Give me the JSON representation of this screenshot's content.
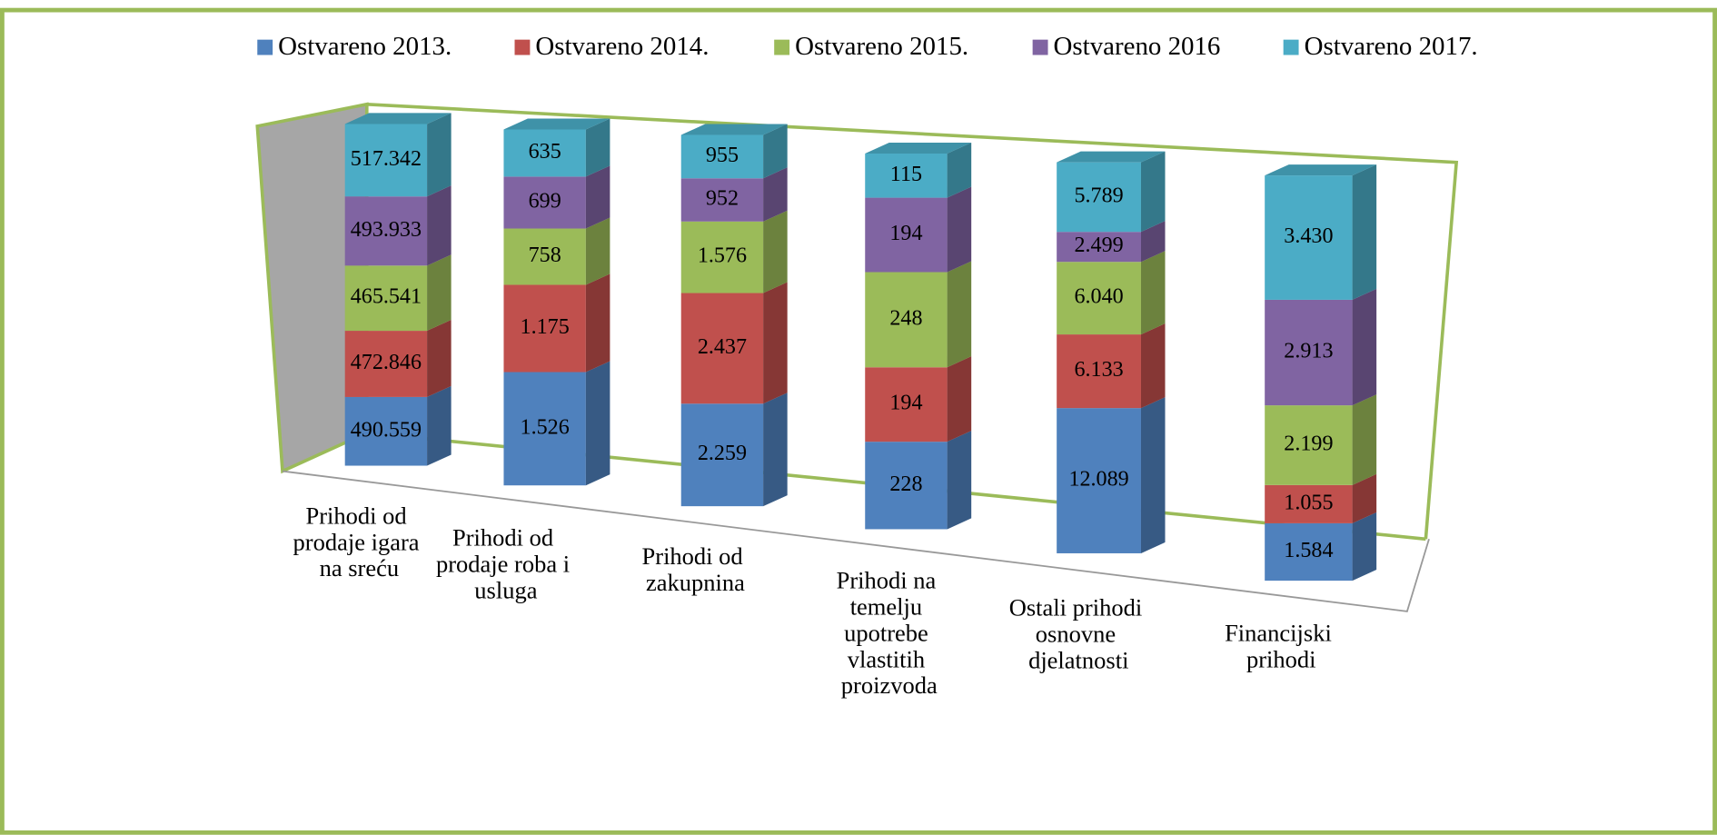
{
  "chart_data": {
    "type": "bar3d_percent",
    "categories": [
      "Prihodi od prodaje igara na sreću",
      "Prihodi od prodaje roba i usluga",
      "Prihodi od zakupnina",
      "Prihodi na temelju upotrebe vlastitih proizvoda",
      "Ostali prihodi osnovne djelatnosti",
      "Financijski prihodi"
    ],
    "series": [
      {
        "name": "Ostvareno 2013.",
        "color": "#4f81bd",
        "values": [
          490559,
          1526,
          2259,
          228,
          12089,
          1584
        ],
        "value_labels": [
          "490.559",
          "1.526",
          "2.259",
          "228",
          "12.089",
          "1.584"
        ]
      },
      {
        "name": "Ostvareno 2014.",
        "color": "#c0504d",
        "values": [
          472846,
          1175,
          2437,
          194,
          6133,
          1055
        ],
        "value_labels": [
          "472.846",
          "1.175",
          "2.437",
          "194",
          "6.133",
          "1.055"
        ]
      },
      {
        "name": "Ostvareno 2015.",
        "color": "#9bbb59",
        "values": [
          465541,
          758,
          1576,
          248,
          6040,
          2199
        ],
        "value_labels": [
          "465.541",
          "758",
          "1.576",
          "248",
          "6.040",
          "2.199"
        ]
      },
      {
        "name": "Ostvareno 2016",
        "color": "#8064a2",
        "values": [
          493933,
          699,
          952,
          194,
          2499,
          2913
        ],
        "value_labels": [
          "493.933",
          "699",
          "952",
          "194",
          "2.499",
          "2.913"
        ]
      },
      {
        "name": "Ostvareno 2017.",
        "color": "#4bacc6",
        "values": [
          517342,
          635,
          955,
          115,
          5789,
          3430
        ],
        "value_labels": [
          "517.342",
          "635",
          "955",
          "115",
          "5.789",
          "3.430"
        ]
      }
    ]
  }
}
